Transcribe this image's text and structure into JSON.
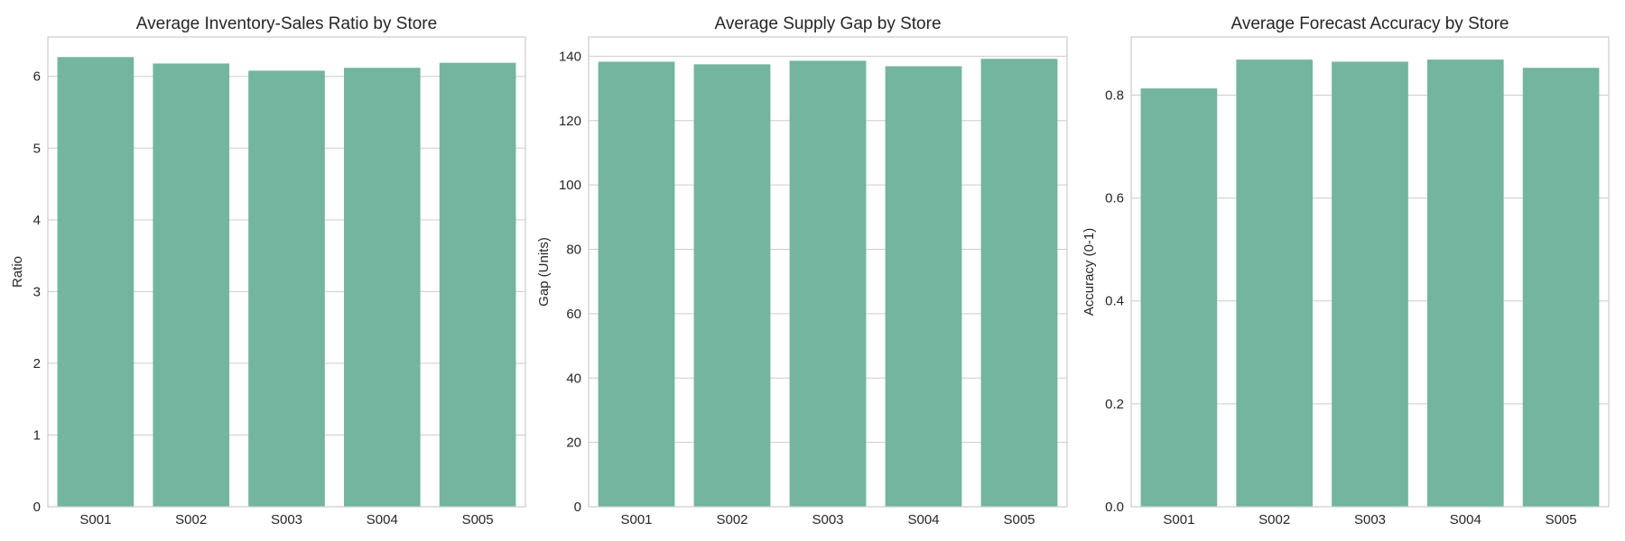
{
  "chart_data": [
    {
      "type": "bar",
      "title": "Average Inventory-Sales Ratio by Store",
      "xlabel": "",
      "ylabel": "Ratio",
      "categories": [
        "S001",
        "S002",
        "S003",
        "S004",
        "S005"
      ],
      "values": [
        6.27,
        6.18,
        6.08,
        6.12,
        6.19
      ],
      "ylim": [
        0,
        6.55
      ],
      "yticks": [
        0,
        1,
        2,
        3,
        4,
        5,
        6
      ],
      "ytick_labels": [
        "0",
        "1",
        "2",
        "3",
        "4",
        "5",
        "6"
      ],
      "grid": true,
      "bar_color": "#73b59f"
    },
    {
      "type": "bar",
      "title": "Average Supply Gap by Store",
      "xlabel": "",
      "ylabel": "Gap (Units)",
      "categories": [
        "S001",
        "S002",
        "S003",
        "S004",
        "S005"
      ],
      "values": [
        138.3,
        137.5,
        138.6,
        136.9,
        139.2
      ],
      "ylim": [
        0,
        146
      ],
      "yticks": [
        0,
        20,
        40,
        60,
        80,
        100,
        120,
        140
      ],
      "ytick_labels": [
        "0",
        "20",
        "40",
        "60",
        "80",
        "100",
        "120",
        "140"
      ],
      "grid": true,
      "bar_color": "#73b59f"
    },
    {
      "type": "bar",
      "title": "Average Forecast Accuracy by Store",
      "xlabel": "",
      "ylabel": "Accuracy (0-1)",
      "categories": [
        "S001",
        "S002",
        "S003",
        "S004",
        "S005"
      ],
      "values": [
        0.813,
        0.869,
        0.865,
        0.869,
        0.853
      ],
      "ylim": [
        0,
        0.913
      ],
      "yticks": [
        0,
        0.2,
        0.4,
        0.6,
        0.8
      ],
      "ytick_labels": [
        "0.0",
        "0.2",
        "0.4",
        "0.6",
        "0.8"
      ],
      "grid": true,
      "bar_color": "#73b59f"
    }
  ]
}
